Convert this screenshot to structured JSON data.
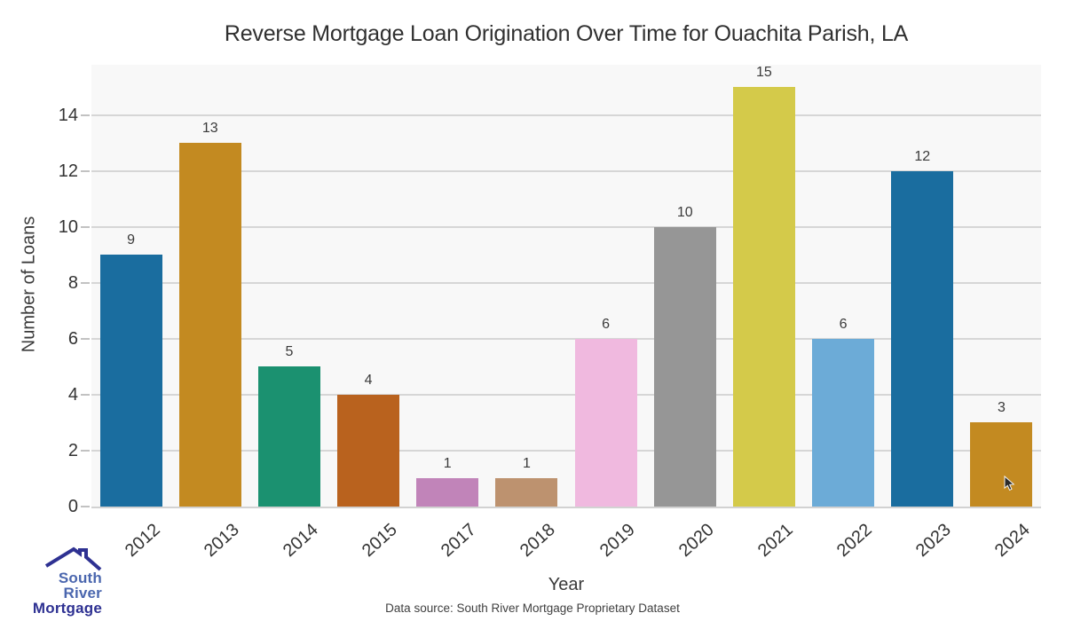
{
  "chart_data": {
    "type": "bar",
    "title": "Reverse Mortgage Loan Origination Over Time for Ouachita Parish, LA",
    "xlabel": "Year",
    "ylabel": "Number of Loans",
    "categories": [
      "2012",
      "2013",
      "2014",
      "2015",
      "2017",
      "2018",
      "2019",
      "2020",
      "2021",
      "2022",
      "2023",
      "2024"
    ],
    "values": [
      9,
      13,
      5,
      4,
      1,
      1,
      6,
      10,
      15,
      6,
      12,
      3
    ],
    "bar_colors": [
      "#1a6d9f",
      "#c38a21",
      "#1b9170",
      "#b9621e",
      "#c184b9",
      "#bd926f",
      "#f0b9df",
      "#969696",
      "#d4ca4a",
      "#6cabd7",
      "#1a6d9f",
      "#c38a21"
    ],
    "bar_value_labels": [
      9,
      13,
      5,
      4,
      1,
      1,
      6,
      10,
      15,
      6,
      12,
      3
    ],
    "yticks": [
      0,
      2,
      4,
      6,
      8,
      10,
      12,
      14
    ],
    "ylim": [
      0,
      15.8
    ],
    "grid": true,
    "legend": false,
    "plot_bg_color": "#f8f8f8",
    "grid_color": "#d6d6d6"
  },
  "footer": {
    "data_source": "Data source: South River Mortgage Proprietary Dataset"
  },
  "logo": {
    "icon": "house-roof-icon",
    "line1": "South River",
    "line2": "Mortgage",
    "line1_color": "#4a66ae",
    "line2_color": "#2e3192"
  },
  "cursor": {
    "icon": "mouse-cursor-icon"
  }
}
